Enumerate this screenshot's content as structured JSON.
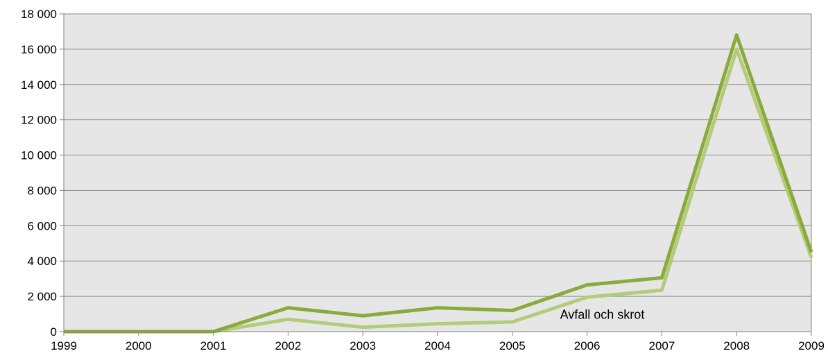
{
  "chart_data": {
    "type": "line",
    "title": "",
    "xlabel": "",
    "ylabel": "",
    "x": [
      "1999",
      "2000",
      "2001",
      "2002",
      "2003",
      "2004",
      "2005",
      "2006",
      "2007",
      "2008",
      "2009"
    ],
    "ylim": [
      0,
      18000
    ],
    "y_ticks": [
      {
        "value": 0,
        "label": "0"
      },
      {
        "value": 2000,
        "label": "2 000"
      },
      {
        "value": 4000,
        "label": "4 000"
      },
      {
        "value": 6000,
        "label": "6 000"
      },
      {
        "value": 8000,
        "label": "8 000"
      },
      {
        "value": 10000,
        "label": "10 000"
      },
      {
        "value": 12000,
        "label": "12 000"
      },
      {
        "value": 14000,
        "label": "14 000"
      },
      {
        "value": 16000,
        "label": "16 000"
      },
      {
        "value": 18000,
        "label": "18 000"
      }
    ],
    "grid": true,
    "legend": "none",
    "plot_background": "#e6e6e6",
    "series": [
      {
        "values": [
          0,
          0,
          0,
          1350,
          900,
          1350,
          1200,
          2650,
          3050,
          16800,
          4500
        ],
        "color": "#8aab3c"
      },
      {
        "values": [
          0,
          0,
          0,
          700,
          250,
          450,
          550,
          1950,
          2350,
          16000,
          4200
        ],
        "color": "#b3cc7a"
      }
    ],
    "annotations": [
      {
        "text": "Avfall och skrot",
        "x": "2006",
        "y": 1000
      }
    ]
  }
}
